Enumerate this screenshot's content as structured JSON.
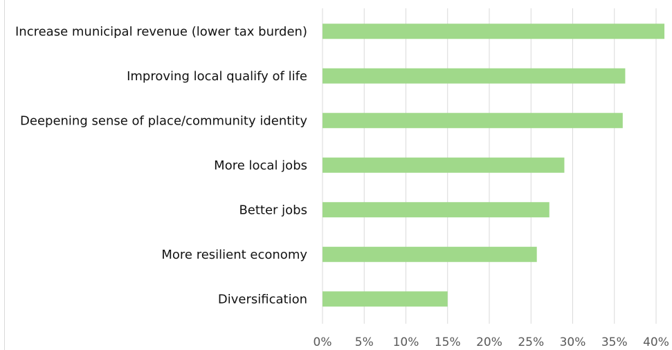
{
  "chart_data": {
    "type": "bar",
    "orientation": "horizontal",
    "categories": [
      "Increase municipal revenue (lower tax burden)",
      "Improving local qualify of life",
      "Deepening sense of place/community identity",
      "More local jobs",
      "Better jobs",
      "More resilient economy",
      "Diversification"
    ],
    "values": [
      41,
      36.3,
      36,
      29,
      27.2,
      25.7,
      15
    ],
    "xlim": [
      0,
      40
    ],
    "xticks": [
      "0%",
      "5%",
      "10%",
      "15%",
      "20%",
      "25%",
      "30%",
      "35%",
      "40%"
    ],
    "grid": "vertical",
    "bar_color": "#a0d98a",
    "grid_color": "#d9d9d9"
  }
}
